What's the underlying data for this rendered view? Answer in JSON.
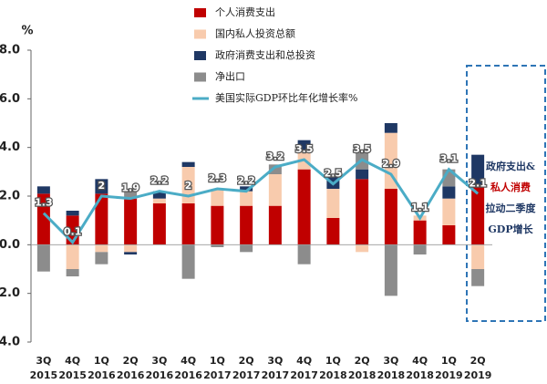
{
  "chart_data": {
    "type": "bar",
    "unit": "%",
    "categories": [
      [
        "3Q",
        "2015"
      ],
      [
        "4Q",
        "2015"
      ],
      [
        "1Q",
        "2016"
      ],
      [
        "2Q",
        "2016"
      ],
      [
        "3Q",
        "2016"
      ],
      [
        "4Q",
        "2016"
      ],
      [
        "1Q",
        "2017"
      ],
      [
        "2Q",
        "2017"
      ],
      [
        "3Q",
        "2017"
      ],
      [
        "4Q",
        "2017"
      ],
      [
        "1Q",
        "2018"
      ],
      [
        "2Q",
        "2018"
      ],
      [
        "3Q",
        "2018"
      ],
      [
        "4Q",
        "2018"
      ],
      [
        "1Q",
        "2019"
      ],
      [
        "2Q",
        "2019"
      ]
    ],
    "series": [
      {
        "name": "个人消费支出",
        "color": "#c00000",
        "values": [
          2.1,
          1.2,
          2.1,
          1.9,
          1.7,
          1.7,
          1.6,
          1.6,
          1.6,
          3.1,
          1.1,
          2.7,
          2.3,
          1.0,
          0.8,
          2.4
        ]
      },
      {
        "name": "国内私人投资总额",
        "color": "#f8cbad",
        "values": [
          0.0,
          -1.0,
          -0.3,
          -0.3,
          0.2,
          1.5,
          0.7,
          0.6,
          1.3,
          0.8,
          1.2,
          -0.3,
          2.3,
          0.2,
          1.1,
          -1.0
        ]
      },
      {
        "name": "政府消费支出和总投资",
        "color": "#1f3864",
        "values": [
          0.3,
          0.2,
          0.6,
          -0.1,
          0.3,
          0.2,
          0.0,
          0.2,
          0.0,
          0.4,
          0.5,
          0.4,
          0.4,
          0.0,
          0.5,
          1.3
        ]
      },
      {
        "name": "净出口",
        "color": "#8c8c8c",
        "values": [
          -1.1,
          -0.3,
          -0.5,
          0.4,
          0.0,
          -1.4,
          -0.1,
          -0.3,
          0.4,
          -0.8,
          0.0,
          0.7,
          -2.1,
          -0.4,
          0.7,
          -0.7
        ]
      },
      {
        "name": "美国实际GDP环比年化增长率%",
        "color": "#4bacc6",
        "type": "line",
        "values": [
          1.3,
          0.1,
          2.0,
          1.9,
          2.2,
          2.0,
          2.3,
          2.2,
          3.2,
          3.5,
          2.5,
          3.5,
          2.9,
          1.1,
          3.1,
          2.1
        ]
      }
    ],
    "ylim": [
      -4,
      8
    ],
    "yticks": [
      {
        "value": -4,
        "label": "4.0"
      },
      {
        "value": -2,
        "label": "2.0"
      },
      {
        "value": 0,
        "label": "0.0"
      },
      {
        "value": 2,
        "label": "2.0"
      },
      {
        "value": 4,
        "label": "4.0"
      },
      {
        "value": 6,
        "label": "6.0"
      },
      {
        "value": 8,
        "label": "8.0"
      }
    ],
    "annotation": [
      "政府支出&",
      "私人消费",
      "拉动二季度",
      "GDP增长"
    ]
  }
}
